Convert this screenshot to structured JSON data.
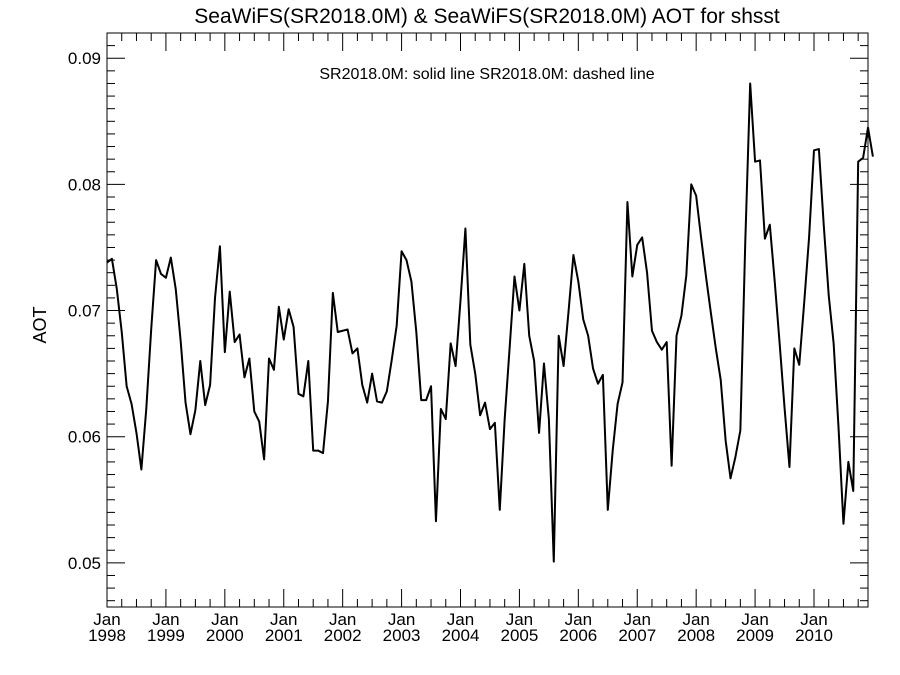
{
  "chart_data": {
    "type": "line",
    "title": "SeaWiFS(SR2018.0M) & SeaWiFS(SR2018.0M)  AOT for shsst",
    "legend_text": "SR2018.0M: solid line   SR2018.0M: dashed line",
    "xlabel": "",
    "ylabel": "AOT",
    "ylim": [
      0.0465,
      0.092
    ],
    "xlim": [
      "1998-01",
      "2010-12"
    ],
    "yticks": [
      "0.05",
      "0.06",
      "0.07",
      "0.08",
      "0.09"
    ],
    "xticks": [
      {
        "month": "Jan",
        "year": "1998"
      },
      {
        "month": "Jan",
        "year": "1999"
      },
      {
        "month": "Jan",
        "year": "2000"
      },
      {
        "month": "Jan",
        "year": "2001"
      },
      {
        "month": "Jan",
        "year": "2002"
      },
      {
        "month": "Jan",
        "year": "2003"
      },
      {
        "month": "Jan",
        "year": "2004"
      },
      {
        "month": "Jan",
        "year": "2005"
      },
      {
        "month": "Jan",
        "year": "2006"
      },
      {
        "month": "Jan",
        "year": "2007"
      },
      {
        "month": "Jan",
        "year": "2008"
      },
      {
        "month": "Jan",
        "year": "2009"
      },
      {
        "month": "Jan",
        "year": "2010"
      }
    ],
    "grid": false,
    "line_color": "#000000",
    "series": [
      {
        "line_style": "solid",
        "x_start": "1998-01",
        "x_step": "monthly",
        "values": [
          0.0738,
          0.0741,
          0.0717,
          0.0683,
          0.064,
          0.0626,
          0.0603,
          0.0574,
          0.0622,
          0.0685,
          0.074,
          0.0729,
          0.0726,
          0.0742,
          0.0717,
          0.0676,
          0.0627,
          0.0602,
          0.0621,
          0.066,
          0.0625,
          0.0641,
          0.071,
          0.0751,
          0.0667,
          0.0715,
          0.0675,
          0.0681,
          0.0647,
          0.0662,
          0.062,
          0.0612,
          0.0582,
          0.0662,
          0.0653,
          0.0703,
          0.0677,
          0.0701,
          0.0687,
          0.0634,
          0.0632,
          0.066,
          0.0589,
          0.0589,
          0.0587,
          0.0628,
          0.0714,
          0.0683,
          0.0684,
          0.0685,
          0.0666,
          0.067,
          0.0641,
          0.0627,
          0.065,
          0.0628,
          0.0627,
          0.0636,
          0.0661,
          0.0688,
          0.0747,
          0.074,
          0.0723,
          0.0683,
          0.0629,
          0.0629,
          0.064,
          0.0533,
          0.0622,
          0.0614,
          0.0674,
          0.0656,
          0.0708,
          0.0765,
          0.0673,
          0.065,
          0.0617,
          0.0627,
          0.0606,
          0.0611,
          0.0542,
          0.0614,
          0.067,
          0.0727,
          0.07,
          0.0737,
          0.068,
          0.066,
          0.0603,
          0.0658,
          0.0614,
          0.0501,
          0.068,
          0.0656,
          0.0699,
          0.0744,
          0.0723,
          0.0693,
          0.068,
          0.0654,
          0.0642,
          0.0649,
          0.0542,
          0.0589,
          0.0626,
          0.0643,
          0.0786,
          0.0727,
          0.0752,
          0.0758,
          0.073,
          0.0684,
          0.0675,
          0.0669,
          0.0675,
          0.0577,
          0.068,
          0.0696,
          0.0728,
          0.08,
          0.0791,
          0.0758,
          0.0727,
          0.0698,
          0.067,
          0.0645,
          0.0597,
          0.0567,
          0.0584,
          0.0605,
          0.0754,
          0.088,
          0.0818,
          0.0819,
          0.0757,
          0.0768,
          0.0723,
          0.0674,
          0.0623,
          0.0576,
          0.067,
          0.0657,
          0.0706,
          0.0758,
          0.0827,
          0.0828,
          0.0767,
          0.0712,
          0.0674,
          0.0607,
          0.0531,
          0.058,
          0.0557,
          0.0818,
          0.0821,
          0.0845,
          0.0822
        ]
      }
    ]
  }
}
